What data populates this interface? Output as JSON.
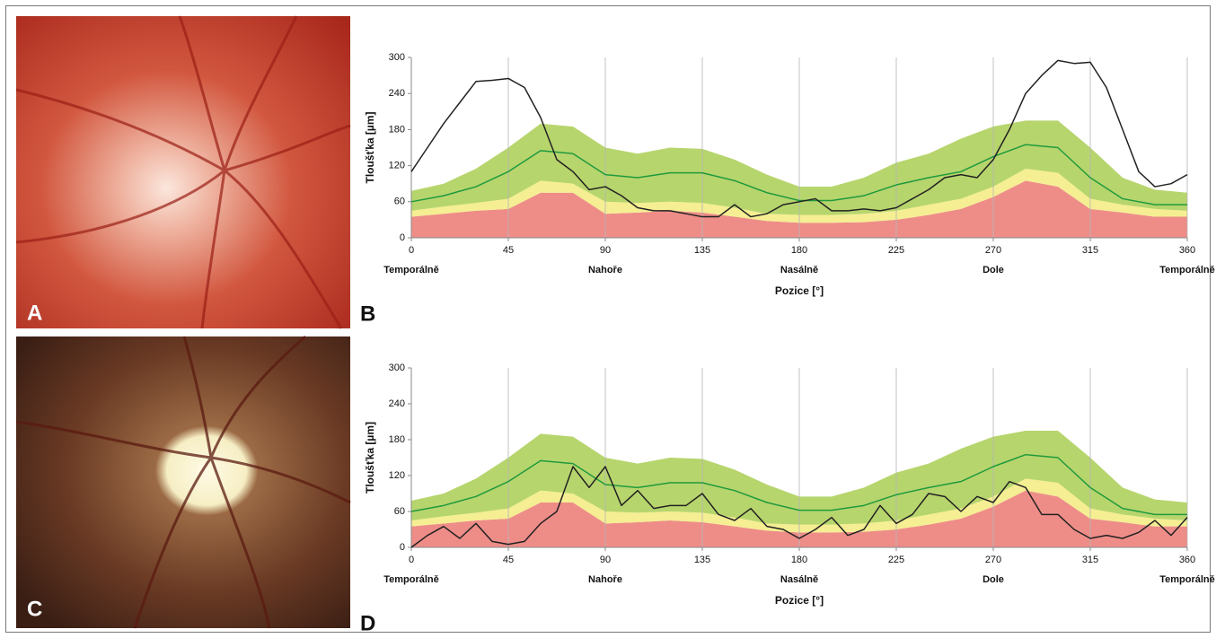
{
  "photos": [
    {
      "label": "A"
    },
    {
      "label": "C"
    }
  ],
  "chart_data": [
    {
      "type": "area",
      "panel_label": "B",
      "xlabel": "Pozice [°]",
      "ylabel": "Tloušťka [µm]",
      "xlim": [
        0,
        360
      ],
      "xticks": [
        0,
        45,
        90,
        135,
        180,
        225,
        270,
        315,
        360
      ],
      "ylim": [
        0,
        300
      ],
      "yticks": [
        0,
        60,
        120,
        180,
        240,
        300
      ],
      "grid": "x",
      "x_annotations": [
        {
          "x": 0,
          "label": "Temporálně"
        },
        {
          "x": 90,
          "label": "Nahoře"
        },
        {
          "x": 180,
          "label": "Nasálně"
        },
        {
          "x": 270,
          "label": "Dole"
        },
        {
          "x": 360,
          "label": "Temporálně"
        }
      ],
      "x": [
        0,
        15,
        30,
        45,
        60,
        75,
        90,
        105,
        120,
        135,
        150,
        165,
        180,
        195,
        210,
        225,
        240,
        255,
        270,
        285,
        300,
        315,
        330,
        345,
        360
      ],
      "series": [
        {
          "kind": "area",
          "color": "#ee8d88",
          "values": [
            35,
            40,
            45,
            48,
            75,
            75,
            40,
            42,
            45,
            42,
            35,
            28,
            25,
            25,
            26,
            30,
            38,
            48,
            68,
            95,
            85,
            48,
            42,
            35,
            35
          ]
        },
        {
          "kind": "area",
          "color": "#f5ee92",
          "values": [
            10,
            12,
            13,
            17,
            20,
            15,
            20,
            16,
            15,
            16,
            15,
            12,
            13,
            13,
            14,
            15,
            17,
            17,
            17,
            20,
            23,
            17,
            13,
            13,
            10
          ]
        },
        {
          "kind": "area",
          "color": "#b7d56d",
          "values": [
            33,
            38,
            57,
            85,
            95,
            95,
            90,
            82,
            90,
            90,
            80,
            65,
            47,
            47,
            60,
            80,
            85,
            100,
            100,
            80,
            87,
            85,
            45,
            32,
            30
          ]
        },
        {
          "kind": "line",
          "color": "#1f9a3d",
          "values": [
            60,
            70,
            85,
            110,
            145,
            140,
            105,
            100,
            108,
            108,
            95,
            75,
            62,
            62,
            70,
            88,
            100,
            110,
            135,
            155,
            150,
            100,
            65,
            55,
            55
          ]
        },
        {
          "kind": "line",
          "color": "#222222",
          "x": [
            0,
            7.5,
            15,
            22.5,
            30,
            37.5,
            45,
            52.5,
            60,
            67.5,
            75,
            82.5,
            90,
            97.5,
            105,
            112.5,
            120,
            127.5,
            135,
            142.5,
            150,
            157.5,
            165,
            172.5,
            180,
            187.5,
            195,
            202.5,
            210,
            217.5,
            225,
            232.5,
            240,
            247.5,
            255,
            262.5,
            270,
            277.5,
            285,
            292.5,
            300,
            307.5,
            315,
            322.5,
            330,
            337.5,
            345,
            352.5,
            360
          ],
          "values": [
            110,
            150,
            190,
            225,
            260,
            262,
            265,
            250,
            200,
            130,
            110,
            80,
            85,
            70,
            50,
            45,
            45,
            40,
            35,
            35,
            55,
            35,
            40,
            55,
            60,
            65,
            45,
            45,
            48,
            45,
            50,
            65,
            80,
            100,
            105,
            100,
            130,
            180,
            240,
            270,
            295,
            290,
            292,
            250,
            180,
            110,
            85,
            90,
            105
          ]
        }
      ]
    },
    {
      "type": "area",
      "panel_label": "D",
      "xlabel": "Pozice [°]",
      "ylabel": "Tloušťka [µm]",
      "xlim": [
        0,
        360
      ],
      "xticks": [
        0,
        45,
        90,
        135,
        180,
        225,
        270,
        315,
        360
      ],
      "ylim": [
        0,
        300
      ],
      "yticks": [
        0,
        60,
        120,
        180,
        240,
        300
      ],
      "grid": "x",
      "x_annotations": [
        {
          "x": 0,
          "label": "Temporálně"
        },
        {
          "x": 90,
          "label": "Nahoře"
        },
        {
          "x": 180,
          "label": "Nasálně"
        },
        {
          "x": 270,
          "label": "Dole"
        },
        {
          "x": 360,
          "label": "Temporálně"
        }
      ],
      "x": [
        0,
        15,
        30,
        45,
        60,
        75,
        90,
        105,
        120,
        135,
        150,
        165,
        180,
        195,
        210,
        225,
        240,
        255,
        270,
        285,
        300,
        315,
        330,
        345,
        360
      ],
      "series": [
        {
          "kind": "area",
          "color": "#ee8d88",
          "values": [
            35,
            40,
            45,
            48,
            75,
            75,
            40,
            42,
            45,
            42,
            35,
            28,
            25,
            25,
            26,
            30,
            38,
            48,
            68,
            95,
            85,
            48,
            42,
            35,
            35
          ]
        },
        {
          "kind": "area",
          "color": "#f5ee92",
          "values": [
            10,
            12,
            13,
            17,
            20,
            15,
            20,
            16,
            15,
            16,
            15,
            12,
            13,
            13,
            14,
            15,
            17,
            17,
            17,
            20,
            23,
            17,
            13,
            13,
            10
          ]
        },
        {
          "kind": "area",
          "color": "#b7d56d",
          "values": [
            33,
            38,
            57,
            85,
            95,
            95,
            90,
            82,
            90,
            90,
            80,
            65,
            47,
            47,
            60,
            80,
            85,
            100,
            100,
            80,
            87,
            85,
            45,
            32,
            30
          ]
        },
        {
          "kind": "line",
          "color": "#1f9a3d",
          "values": [
            60,
            70,
            85,
            110,
            145,
            140,
            105,
            100,
            108,
            108,
            95,
            75,
            62,
            62,
            70,
            88,
            100,
            110,
            135,
            155,
            150,
            100,
            65,
            55,
            55
          ]
        },
        {
          "kind": "line",
          "color": "#222222",
          "x": [
            0,
            7.5,
            15,
            22.5,
            30,
            37.5,
            45,
            52.5,
            60,
            67.5,
            75,
            82.5,
            90,
            97.5,
            105,
            112.5,
            120,
            127.5,
            135,
            142.5,
            150,
            157.5,
            165,
            172.5,
            180,
            187.5,
            195,
            202.5,
            210,
            217.5,
            225,
            232.5,
            240,
            247.5,
            255,
            262.5,
            270,
            277.5,
            285,
            292.5,
            300,
            307.5,
            315,
            322.5,
            330,
            337.5,
            345,
            352.5,
            360
          ],
          "values": [
            0,
            20,
            35,
            15,
            40,
            10,
            5,
            10,
            40,
            60,
            135,
            100,
            135,
            70,
            95,
            65,
            70,
            70,
            90,
            55,
            45,
            65,
            35,
            30,
            15,
            30,
            50,
            20,
            30,
            70,
            40,
            55,
            90,
            85,
            60,
            85,
            75,
            110,
            100,
            55,
            55,
            30,
            15,
            20,
            15,
            25,
            45,
            20,
            50
          ]
        }
      ]
    }
  ]
}
